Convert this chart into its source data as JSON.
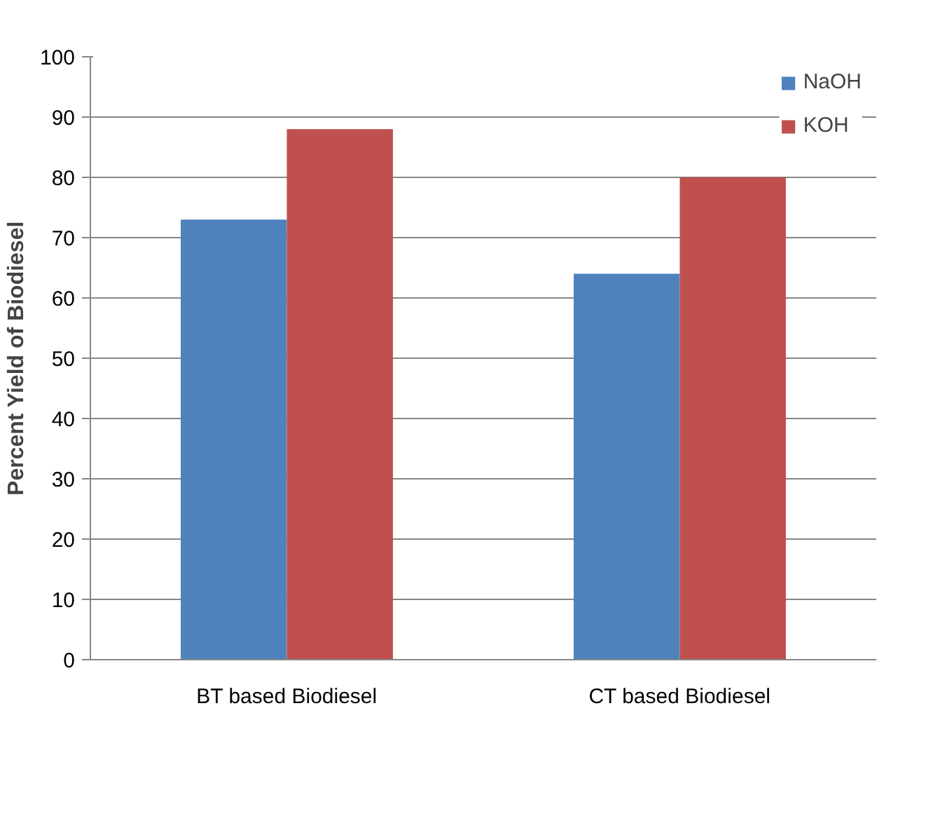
{
  "chart_data": {
    "type": "bar",
    "ylabel": "Percent Yield of Biodiesel",
    "categories": [
      "BT based Biodiesel",
      "CT based Biodiesel"
    ],
    "series": [
      {
        "name": "NaOH",
        "color": "#4f81bd",
        "values": [
          73,
          64
        ]
      },
      {
        "name": "KOH",
        "color": "#c0504d",
        "values": [
          88,
          80
        ]
      }
    ],
    "ylim": [
      0,
      100
    ],
    "yticks": [
      0,
      10,
      20,
      30,
      40,
      50,
      60,
      70,
      80,
      90,
      100
    ],
    "grid": "y",
    "legend": "top right"
  }
}
